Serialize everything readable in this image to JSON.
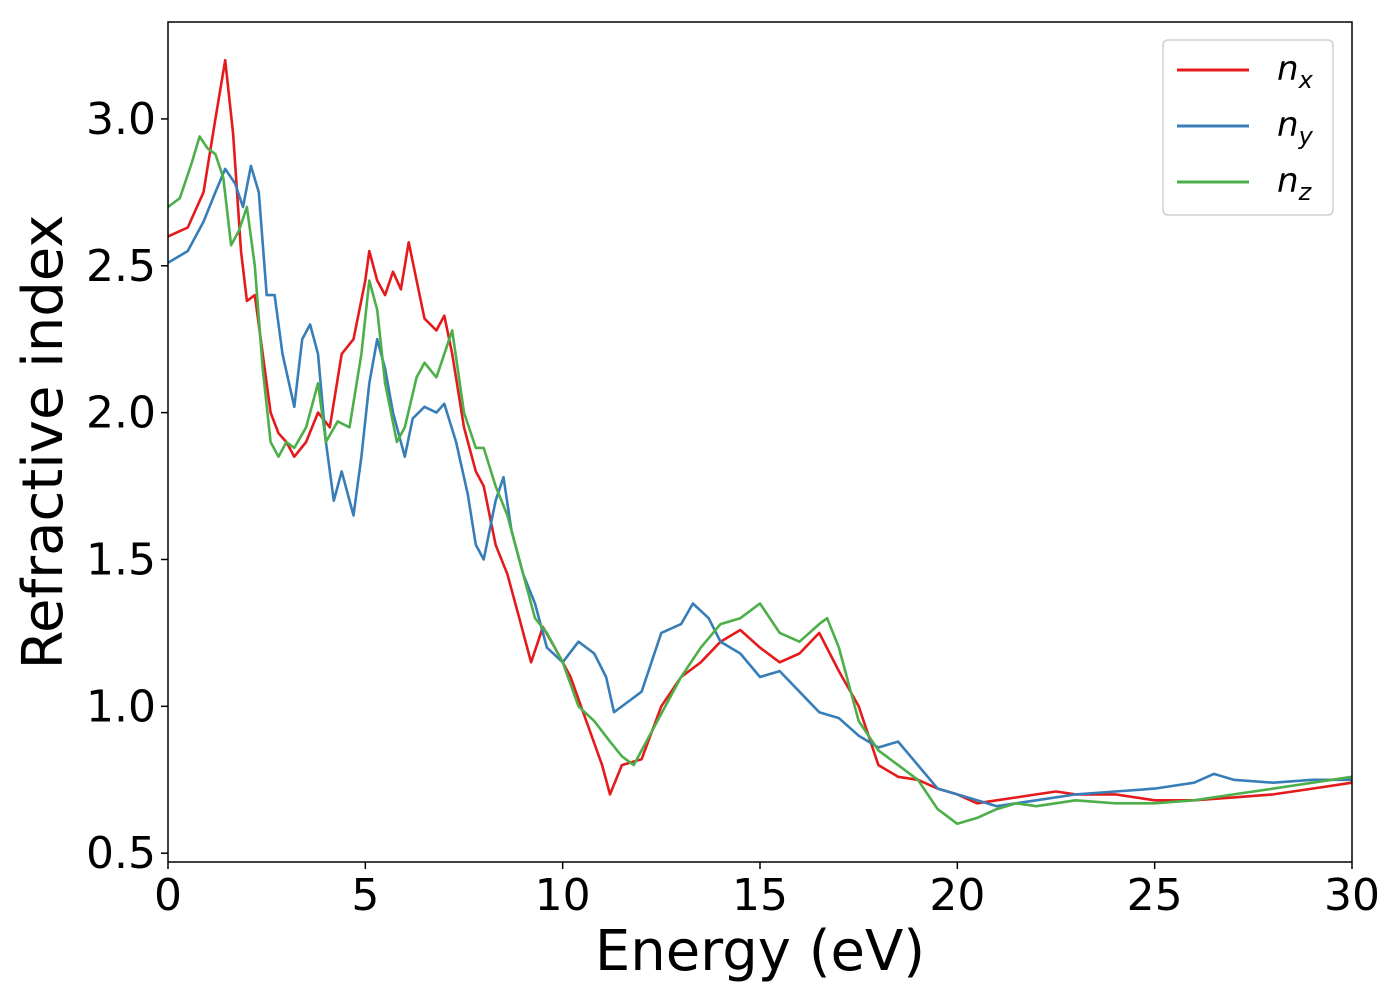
{
  "chart_data": {
    "type": "line",
    "xlabel": "Energy (eV)",
    "ylabel": "Refractive index",
    "xlim": [
      0,
      30
    ],
    "ylim": [
      0.47,
      3.33
    ],
    "xticks": [
      0,
      5,
      10,
      15,
      20,
      25,
      30
    ],
    "yticks": [
      0.5,
      1.0,
      1.5,
      2.0,
      2.5,
      3.0
    ],
    "xtick_labels": [
      "0",
      "5",
      "10",
      "15",
      "20",
      "25",
      "30"
    ],
    "ytick_labels": [
      "0.5",
      "1.0",
      "1.5",
      "2.0",
      "2.5",
      "3.0"
    ],
    "grid": false,
    "legend_position": "top-right",
    "series": [
      {
        "name": "n",
        "subscript": "x",
        "color": "#e41a1c",
        "points": [
          [
            0,
            2.6
          ],
          [
            0.5,
            2.63
          ],
          [
            0.9,
            2.75
          ],
          [
            1.2,
            3.0
          ],
          [
            1.45,
            3.2
          ],
          [
            1.65,
            2.95
          ],
          [
            1.85,
            2.55
          ],
          [
            2.0,
            2.38
          ],
          [
            2.2,
            2.4
          ],
          [
            2.4,
            2.2
          ],
          [
            2.6,
            2.0
          ],
          [
            2.8,
            1.93
          ],
          [
            3.0,
            1.9
          ],
          [
            3.2,
            1.85
          ],
          [
            3.5,
            1.9
          ],
          [
            3.8,
            2.0
          ],
          [
            4.1,
            1.95
          ],
          [
            4.4,
            2.2
          ],
          [
            4.7,
            2.25
          ],
          [
            5.0,
            2.45
          ],
          [
            5.1,
            2.55
          ],
          [
            5.3,
            2.45
          ],
          [
            5.5,
            2.4
          ],
          [
            5.7,
            2.48
          ],
          [
            5.9,
            2.42
          ],
          [
            6.1,
            2.58
          ],
          [
            6.3,
            2.45
          ],
          [
            6.5,
            2.32
          ],
          [
            6.8,
            2.28
          ],
          [
            7.0,
            2.33
          ],
          [
            7.2,
            2.2
          ],
          [
            7.5,
            1.95
          ],
          [
            7.8,
            1.8
          ],
          [
            8.0,
            1.75
          ],
          [
            8.3,
            1.55
          ],
          [
            8.6,
            1.45
          ],
          [
            8.9,
            1.3
          ],
          [
            9.2,
            1.15
          ],
          [
            9.5,
            1.27
          ],
          [
            9.8,
            1.2
          ],
          [
            10.2,
            1.1
          ],
          [
            10.6,
            0.95
          ],
          [
            11.0,
            0.8
          ],
          [
            11.2,
            0.7
          ],
          [
            11.5,
            0.8
          ],
          [
            12.0,
            0.82
          ],
          [
            12.5,
            1.0
          ],
          [
            13.0,
            1.1
          ],
          [
            13.5,
            1.15
          ],
          [
            14.0,
            1.22
          ],
          [
            14.5,
            1.26
          ],
          [
            15.0,
            1.2
          ],
          [
            15.5,
            1.15
          ],
          [
            16.0,
            1.18
          ],
          [
            16.5,
            1.25
          ],
          [
            17.0,
            1.12
          ],
          [
            17.5,
            1.0
          ],
          [
            18.0,
            0.8
          ],
          [
            18.5,
            0.76
          ],
          [
            19.0,
            0.75
          ],
          [
            19.5,
            0.72
          ],
          [
            20.0,
            0.7
          ],
          [
            20.5,
            0.67
          ],
          [
            21.0,
            0.68
          ],
          [
            21.5,
            0.69
          ],
          [
            22.0,
            0.7
          ],
          [
            22.5,
            0.71
          ],
          [
            23.0,
            0.7
          ],
          [
            24.0,
            0.7
          ],
          [
            25.0,
            0.68
          ],
          [
            26.0,
            0.68
          ],
          [
            27.0,
            0.69
          ],
          [
            28.0,
            0.7
          ],
          [
            29.0,
            0.72
          ],
          [
            30.0,
            0.74
          ]
        ]
      },
      {
        "name": "n",
        "subscript": "y",
        "color": "#377eb8",
        "points": [
          [
            0,
            2.51
          ],
          [
            0.5,
            2.55
          ],
          [
            0.9,
            2.65
          ],
          [
            1.2,
            2.75
          ],
          [
            1.45,
            2.83
          ],
          [
            1.7,
            2.78
          ],
          [
            1.9,
            2.7
          ],
          [
            2.1,
            2.84
          ],
          [
            2.3,
            2.75
          ],
          [
            2.5,
            2.4
          ],
          [
            2.7,
            2.4
          ],
          [
            2.9,
            2.2
          ],
          [
            3.2,
            2.02
          ],
          [
            3.4,
            2.25
          ],
          [
            3.6,
            2.3
          ],
          [
            3.8,
            2.2
          ],
          [
            4.0,
            1.9
          ],
          [
            4.2,
            1.7
          ],
          [
            4.4,
            1.8
          ],
          [
            4.7,
            1.65
          ],
          [
            4.9,
            1.85
          ],
          [
            5.1,
            2.1
          ],
          [
            5.3,
            2.25
          ],
          [
            5.5,
            2.15
          ],
          [
            5.7,
            2.0
          ],
          [
            6.0,
            1.85
          ],
          [
            6.2,
            1.98
          ],
          [
            6.5,
            2.02
          ],
          [
            6.8,
            2.0
          ],
          [
            7.0,
            2.03
          ],
          [
            7.3,
            1.9
          ],
          [
            7.6,
            1.72
          ],
          [
            7.8,
            1.55
          ],
          [
            8.0,
            1.5
          ],
          [
            8.3,
            1.7
          ],
          [
            8.5,
            1.78
          ],
          [
            8.7,
            1.6
          ],
          [
            9.0,
            1.45
          ],
          [
            9.3,
            1.35
          ],
          [
            9.6,
            1.2
          ],
          [
            10.0,
            1.15
          ],
          [
            10.4,
            1.22
          ],
          [
            10.8,
            1.18
          ],
          [
            11.1,
            1.1
          ],
          [
            11.3,
            0.98
          ],
          [
            11.7,
            1.02
          ],
          [
            12.0,
            1.05
          ],
          [
            12.5,
            1.25
          ],
          [
            13.0,
            1.28
          ],
          [
            13.3,
            1.35
          ],
          [
            13.7,
            1.3
          ],
          [
            14.0,
            1.22
          ],
          [
            14.5,
            1.18
          ],
          [
            15.0,
            1.1
          ],
          [
            15.5,
            1.12
          ],
          [
            16.0,
            1.05
          ],
          [
            16.5,
            0.98
          ],
          [
            17.0,
            0.96
          ],
          [
            17.5,
            0.9
          ],
          [
            18.0,
            0.86
          ],
          [
            18.5,
            0.88
          ],
          [
            19.0,
            0.8
          ],
          [
            19.5,
            0.72
          ],
          [
            20.0,
            0.7
          ],
          [
            20.5,
            0.68
          ],
          [
            21.0,
            0.66
          ],
          [
            22.0,
            0.68
          ],
          [
            23.0,
            0.7
          ],
          [
            24.0,
            0.71
          ],
          [
            25.0,
            0.72
          ],
          [
            26.0,
            0.74
          ],
          [
            26.5,
            0.77
          ],
          [
            27.0,
            0.75
          ],
          [
            28.0,
            0.74
          ],
          [
            29.0,
            0.75
          ],
          [
            30.0,
            0.75
          ]
        ]
      },
      {
        "name": "n",
        "subscript": "z",
        "color": "#4daf4a",
        "points": [
          [
            0,
            2.7
          ],
          [
            0.3,
            2.73
          ],
          [
            0.6,
            2.85
          ],
          [
            0.8,
            2.94
          ],
          [
            1.0,
            2.9
          ],
          [
            1.2,
            2.88
          ],
          [
            1.4,
            2.8
          ],
          [
            1.6,
            2.57
          ],
          [
            1.8,
            2.62
          ],
          [
            2.0,
            2.7
          ],
          [
            2.2,
            2.5
          ],
          [
            2.4,
            2.15
          ],
          [
            2.6,
            1.9
          ],
          [
            2.8,
            1.85
          ],
          [
            3.0,
            1.9
          ],
          [
            3.2,
            1.88
          ],
          [
            3.5,
            1.95
          ],
          [
            3.8,
            2.1
          ],
          [
            4.0,
            1.9
          ],
          [
            4.3,
            1.97
          ],
          [
            4.6,
            1.95
          ],
          [
            4.9,
            2.2
          ],
          [
            5.1,
            2.45
          ],
          [
            5.3,
            2.35
          ],
          [
            5.5,
            2.1
          ],
          [
            5.8,
            1.9
          ],
          [
            6.0,
            1.95
          ],
          [
            6.3,
            2.12
          ],
          [
            6.5,
            2.17
          ],
          [
            6.8,
            2.12
          ],
          [
            7.0,
            2.2
          ],
          [
            7.2,
            2.28
          ],
          [
            7.5,
            2.0
          ],
          [
            7.8,
            1.88
          ],
          [
            8.0,
            1.88
          ],
          [
            8.3,
            1.75
          ],
          [
            8.6,
            1.65
          ],
          [
            9.0,
            1.45
          ],
          [
            9.3,
            1.3
          ],
          [
            9.6,
            1.25
          ],
          [
            10.0,
            1.15
          ],
          [
            10.4,
            1.0
          ],
          [
            10.8,
            0.95
          ],
          [
            11.2,
            0.88
          ],
          [
            11.5,
            0.83
          ],
          [
            11.8,
            0.8
          ],
          [
            12.2,
            0.9
          ],
          [
            12.6,
            1.0
          ],
          [
            13.0,
            1.1
          ],
          [
            13.5,
            1.2
          ],
          [
            14.0,
            1.28
          ],
          [
            14.5,
            1.3
          ],
          [
            15.0,
            1.35
          ],
          [
            15.5,
            1.25
          ],
          [
            16.0,
            1.22
          ],
          [
            16.5,
            1.28
          ],
          [
            16.7,
            1.3
          ],
          [
            17.0,
            1.2
          ],
          [
            17.5,
            0.95
          ],
          [
            18.0,
            0.85
          ],
          [
            18.5,
            0.8
          ],
          [
            19.0,
            0.75
          ],
          [
            19.5,
            0.65
          ],
          [
            20.0,
            0.6
          ],
          [
            20.5,
            0.62
          ],
          [
            21.0,
            0.65
          ],
          [
            21.5,
            0.67
          ],
          [
            22.0,
            0.66
          ],
          [
            23.0,
            0.68
          ],
          [
            24.0,
            0.67
          ],
          [
            25.0,
            0.67
          ],
          [
            26.0,
            0.68
          ],
          [
            27.0,
            0.7
          ],
          [
            28.0,
            0.72
          ],
          [
            29.0,
            0.74
          ],
          [
            30.0,
            0.76
          ]
        ]
      }
    ]
  }
}
